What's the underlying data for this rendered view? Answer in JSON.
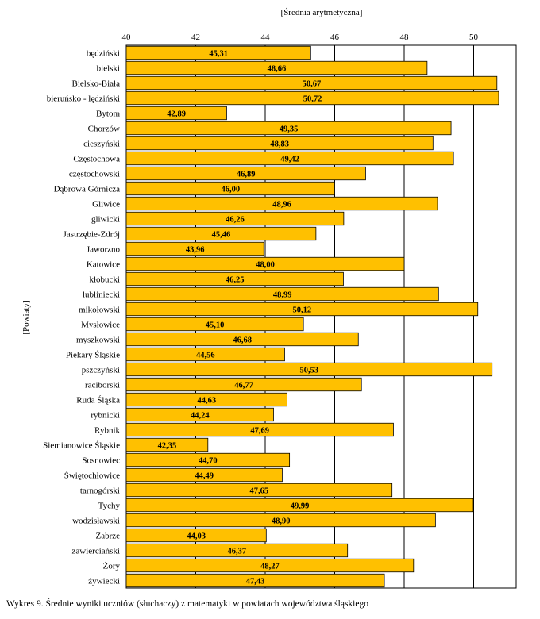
{
  "chart_data": {
    "type": "bar",
    "orientation": "horizontal",
    "xlabel": "[Średnia arytmetyczna]",
    "ylabel": "[Powiaty]",
    "xlim": [
      40,
      51
    ],
    "xticks": [
      "40",
      "42",
      "44",
      "46",
      "48",
      "50"
    ],
    "grid": true,
    "bar_color": "#ffc000",
    "categories": [
      "będziński",
      "bielski",
      "Bielsko-Biała",
      "bieruńsko - lędziński",
      "Bytom",
      "Chorzów",
      "cieszyński",
      "Częstochowa",
      "częstochowski",
      "Dąbrowa Górnicza",
      "Gliwice",
      "gliwicki",
      "Jastrzębie-Zdrój",
      "Jaworzno",
      "Katowice",
      "kłobucki",
      "lubliniecki",
      "mikołowski",
      "Mysłowice",
      "myszkowski",
      "Piekary Śląskie",
      "pszczyński",
      "raciborski",
      "Ruda Śląska",
      "rybnicki",
      "Rybnik",
      "Siemianowice Śląskie",
      "Sosnowiec",
      "Świętochłowice",
      "tarnogórski",
      "Tychy",
      "wodzisławski",
      "Zabrze",
      "zawierciański",
      "Żory",
      "żywiecki"
    ],
    "values": [
      45.31,
      48.66,
      50.67,
      50.72,
      42.89,
      49.35,
      48.83,
      49.42,
      46.89,
      46.0,
      48.96,
      46.26,
      45.46,
      43.96,
      48.0,
      46.25,
      48.99,
      50.12,
      45.1,
      46.68,
      44.56,
      50.53,
      46.77,
      44.63,
      44.24,
      47.69,
      42.35,
      44.7,
      44.49,
      47.65,
      49.99,
      48.9,
      44.03,
      46.37,
      48.27,
      47.43
    ],
    "value_labels": [
      "45,31",
      "48,66",
      "50,67",
      "50,72",
      "42,89",
      "49,35",
      "48,83",
      "49,42",
      "46,89",
      "46,00",
      "48,96",
      "46,26",
      "45,46",
      "43,96",
      "48,00",
      "46,25",
      "48,99",
      "50,12",
      "45,10",
      "46,68",
      "44,56",
      "50,53",
      "46,77",
      "44,63",
      "44,24",
      "47,69",
      "42,35",
      "44,70",
      "44,49",
      "47,65",
      "49,99",
      "48,90",
      "44,03",
      "46,37",
      "48,27",
      "47,43"
    ]
  },
  "caption": "Wykres 9. Średnie wyniki uczniów (słuchaczy) z matematyki w powiatach województwa śląskiego"
}
